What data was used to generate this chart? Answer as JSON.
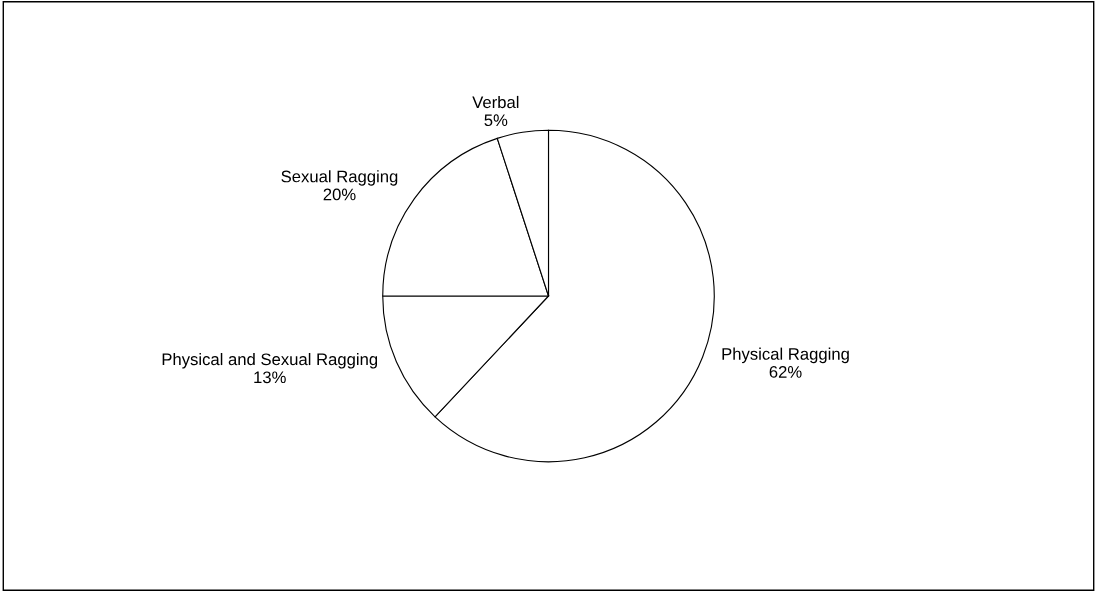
{
  "chart_data": {
    "type": "pie",
    "categories": [
      "Physical Ragging",
      "Physical and Sexual Ragging",
      "Sexual Ragging",
      "Verbal"
    ],
    "values": [
      62,
      13,
      20,
      5
    ],
    "value_labels": [
      "62%",
      "13%",
      "20%",
      "5%"
    ],
    "colors": [
      "#ffffff",
      "#ffffff",
      "#ffffff",
      "#ffffff"
    ],
    "legend": false
  }
}
